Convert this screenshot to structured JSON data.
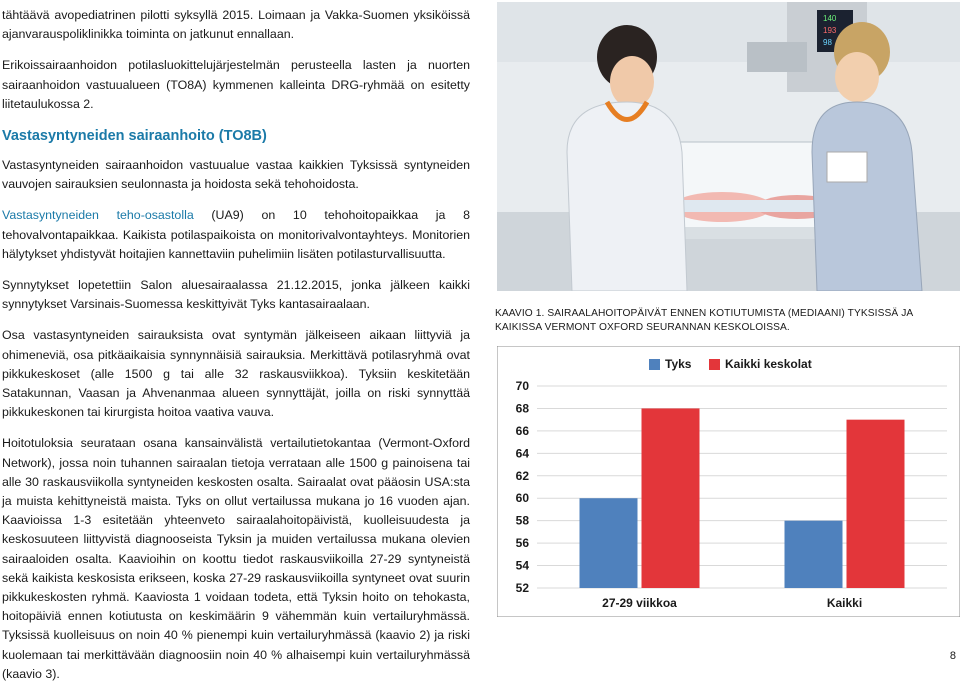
{
  "body": {
    "p1": "tähtäävä avopediatrinen pilotti syksyllä 2015. Loimaan ja Vakka-Suomen yksiköissä ajanvarauspoliklinikka toiminta on jatkunut ennallaan.",
    "p2": "Erikoissairaanhoidon potilasluokittelujärjestelmän perusteella lasten ja nuorten sairaanhoidon vastuualueen (TO8A) kymmenen kalleinta DRG-ryhmää on esitetty liitetaulukossa 2.",
    "heading": "Vastasyntyneiden sairaanhoito (TO8B)",
    "p3": "Vastasyntyneiden sairaanhoidon vastuualue vastaa kaikkien Tyksissä syntyneiden vauvojen sairauksien seulonnasta ja hoidosta sekä tehohoidosta.",
    "p4_accent": "Vastasyntyneiden teho-osastolla",
    "p4_rest": " (UA9) on 10 tehohoitopaikkaa ja 8 tehovalvontapaikkaa. Kaikista potilaspaikoista on monitorivalvontayhteys. Monitorien hälytykset yhdistyvät hoitajien kannettaviin puhelimiin lisäten potilasturvallisuutta.",
    "p5": "Synnytykset lopetettiin Salon aluesairaalassa 21.12.2015, jonka jälkeen kaikki synnytykset Varsinais-Suomessa keskittyivät Tyks kantasairaalaan.",
    "p6": "Osa vastasyntyneiden sairauksista ovat syntymän jälkeiseen aikaan liittyviä ja ohimeneviä, osa pitkäaikaisia synnynnäisiä sairauksia. Merkittävä potilasryhmä ovat pikkukeskoset (alle 1500 g tai alle 32 raskausviikkoa). Tyksiin keskitetään Satakunnan, Vaasan ja Ahvenanmaa alueen synnyttäjät, joilla on riski synnyttää pikkukeskonen tai kirurgista hoitoa vaativa vauva.",
    "p7": "Hoitotuloksia seurataan osana kansainvälistä vertailutietokantaa (Vermont-Oxford Network), jossa noin tuhannen sairaalan tietoja verrataan alle 1500 g painoisena tai alle 30 raskausviikolla syntyneiden keskosten osalta. Sairaalat ovat pääosin USA:sta ja muista kehittyneistä maista. Tyks on ollut vertailussa mukana jo 16 vuoden ajan. Kaavioissa 1-3 esitetään yhteenveto sairaalahoitopäivistä, kuolleisuudesta ja keskosuuteen liittyvistä diagnooseista Tyksin ja muiden vertailussa mukana olevien sairaaloiden osalta. Kaavioihin on koottu tiedot raskausviikoilla 27-29 syntyneistä sekä kaikista keskosista erikseen, koska 27-29 raskausviikoilla syntyneet ovat suurin pikkukeskosten ryhmä. Kaaviosta 1 voidaan todeta, että Tyksin hoito on tehokasta, hoitopäiviä ennen kotiutusta on keskimäärin 9 vähemmän kuin vertailuryhmässä. Tyksissä kuolleisuus on noin 40 % pienempi kuin vertailuryhmässä (kaavio 2) ja riski kuolemaan tai merkittävään diagnoosiin noin 40 % alhaisempi kuin vertailuryhmässä (kaavio 3)."
  },
  "caption": "KAAVIO 1. SAIRAALAHOITOPÄIVÄT ENNEN KOTIUTUMISTA (MEDIAANI) TYKSISSÄ JA KAIKISSA VERMONT OXFORD SEURANNAN KESKOLOISSA.",
  "monitor": {
    "v1": "140",
    "v2": "193",
    "v3": "98"
  },
  "colors": {
    "tyks": "#4f81bd",
    "all": "#e3363a",
    "heading": "#1b7aa8"
  },
  "chart_data": {
    "type": "bar",
    "categories": [
      "27-29 viikkoa",
      "Kaikki"
    ],
    "series": [
      {
        "name": "Tyks",
        "values": [
          60,
          58
        ]
      },
      {
        "name": "Kaikki keskolat",
        "values": [
          68,
          67
        ]
      }
    ],
    "ylim": [
      52,
      70
    ],
    "yticks": [
      52,
      54,
      56,
      58,
      60,
      62,
      64,
      66,
      68,
      70
    ],
    "legend": "top"
  },
  "page_number": "8"
}
